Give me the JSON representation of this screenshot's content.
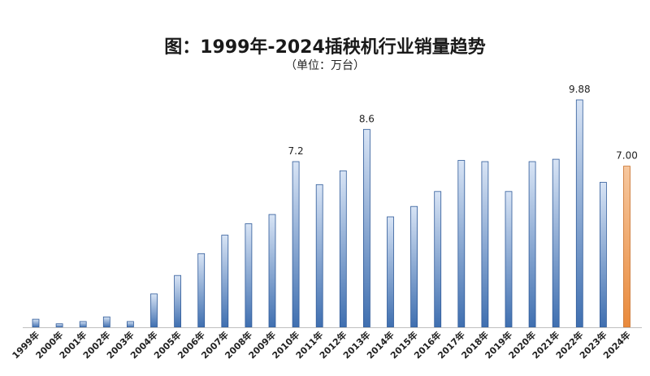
{
  "chart_data": {
    "type": "bar",
    "title": "图：1999年-2024插秧机行业销量趋势",
    "subtitle": "（单位：万台）",
    "categories": [
      "1999年",
      "2000年",
      "2001年",
      "2002年",
      "2003年",
      "2004年",
      "2005年",
      "2006年",
      "2007年",
      "2008年",
      "2009年",
      "2010年",
      "2011年",
      "2012年",
      "2013年",
      "2014年",
      "2015年",
      "2016年",
      "2017年",
      "2018年",
      "2019年",
      "2020年",
      "2021年",
      "2022年",
      "2023年",
      "2024年"
    ],
    "values": [
      0.35,
      0.15,
      0.25,
      0.45,
      0.25,
      1.45,
      2.25,
      3.2,
      4.0,
      4.5,
      4.9,
      7.2,
      6.2,
      6.8,
      8.6,
      4.8,
      5.25,
      5.9,
      7.25,
      7.2,
      5.9,
      7.2,
      7.3,
      9.88,
      6.3,
      7.0
    ],
    "data_labels": [
      {
        "index": 11,
        "text": "7.2"
      },
      {
        "index": 14,
        "text": "8.6"
      },
      {
        "index": 23,
        "text": "9.88"
      },
      {
        "index": 25,
        "text": "7.00"
      }
    ],
    "ylim": [
      0,
      10
    ],
    "grid": false,
    "legend": "none",
    "colors": {
      "bar_top": "#d8e4f5",
      "bar_bottom": "#3f6fb0",
      "bar_stroke": "#2f5a99",
      "highlight_top": "#f6c79e",
      "highlight_bottom": "#e98a3c",
      "highlight_stroke": "#c8702a",
      "highlight_index": 25,
      "axis": "#bfbfbf",
      "label": "#222222"
    }
  }
}
